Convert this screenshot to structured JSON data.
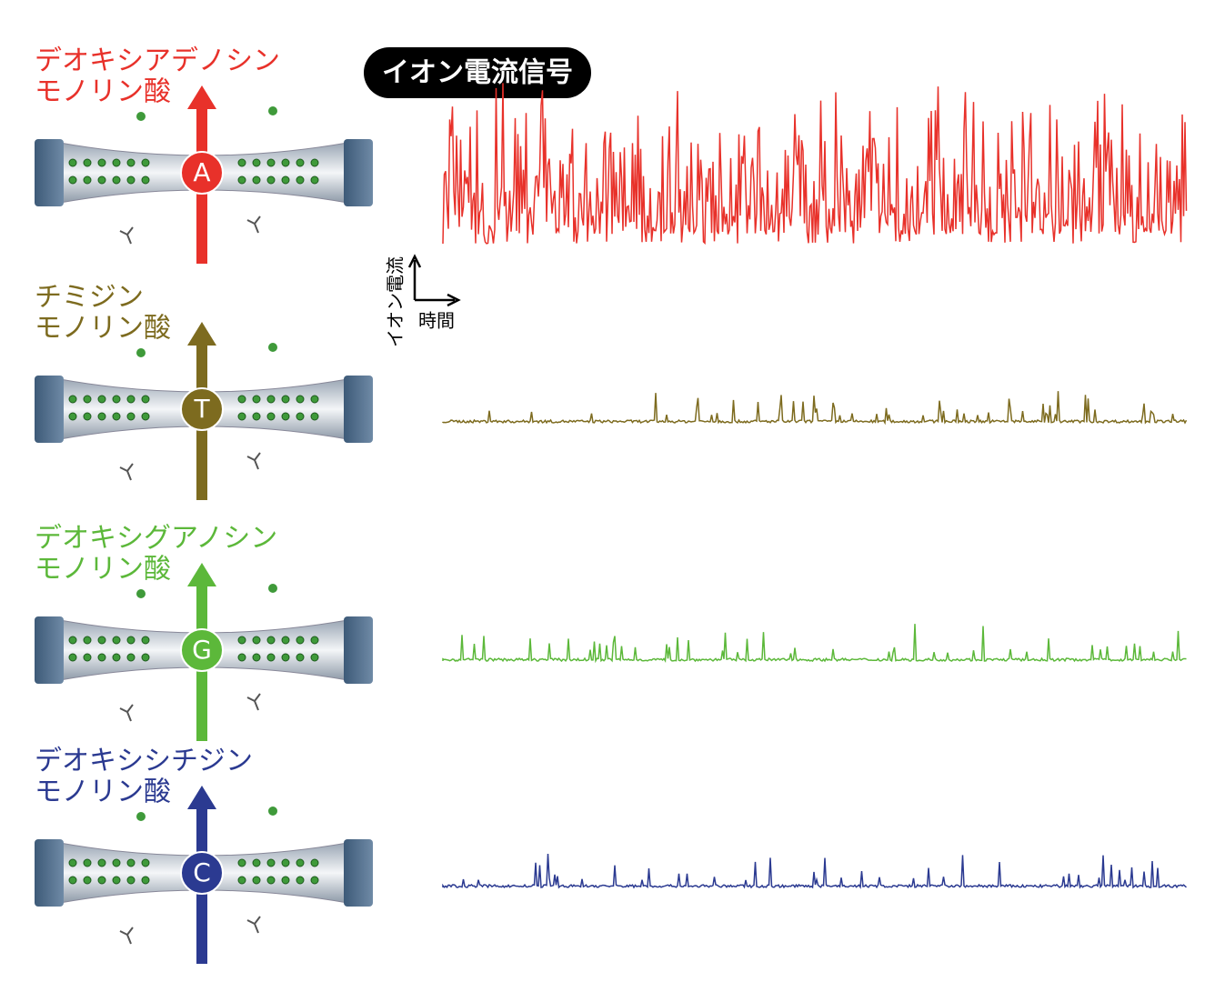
{
  "badge": "イオン電流信号",
  "scale_bar": {
    "y_label": "イオン電流",
    "x_label": "時間"
  },
  "panels": [
    {
      "lines": [
        "デオキシアデノシン",
        "モノリン酸"
      ],
      "base": "A",
      "color": "#e8312a"
    },
    {
      "lines": [
        "チミジン",
        "モノリン酸"
      ],
      "base": "T",
      "color": "#7d6b1f"
    },
    {
      "lines": [
        "デオキシグアノシン",
        "モノリン酸"
      ],
      "base": "G",
      "color": "#5cb83a"
    },
    {
      "lines": [
        "デオキシシチジン",
        "モノリン酸"
      ],
      "base": "C",
      "color": "#2b3a91"
    }
  ]
}
